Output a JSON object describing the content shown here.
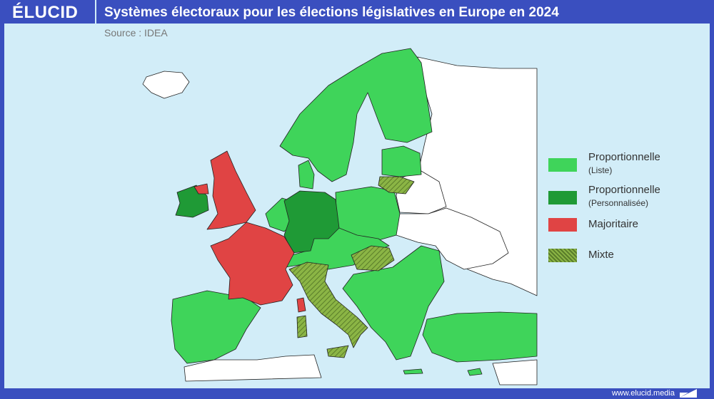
{
  "header": {
    "logo": "ÉLUCID",
    "title": "Systèmes électoraux pour les élections législatives en Europe en 2024",
    "source": "Source : IDEA"
  },
  "legend": [
    {
      "label": "Proportionnelle",
      "sublabel": "(Liste)",
      "color": "#3fd45a"
    },
    {
      "label": "Proportionnelle",
      "sublabel": "(Personnalisée)",
      "color": "#1f9a36"
    },
    {
      "label": "Majoritaire",
      "sublabel": "",
      "color": "#e04444"
    },
    {
      "label": "Mixte",
      "sublabel": "",
      "color": "#7aa63a"
    }
  ],
  "colors": {
    "frame": "#3a4fbf",
    "sea": "#d2edf8",
    "non_eu": "#ffffff",
    "proportional_list": "#3fd45a",
    "proportional_personalized": "#1f9a36",
    "majoritarian": "#e04444",
    "mixed": "#7aa63a"
  },
  "footer": {
    "url": "www.elucid.media"
  }
}
